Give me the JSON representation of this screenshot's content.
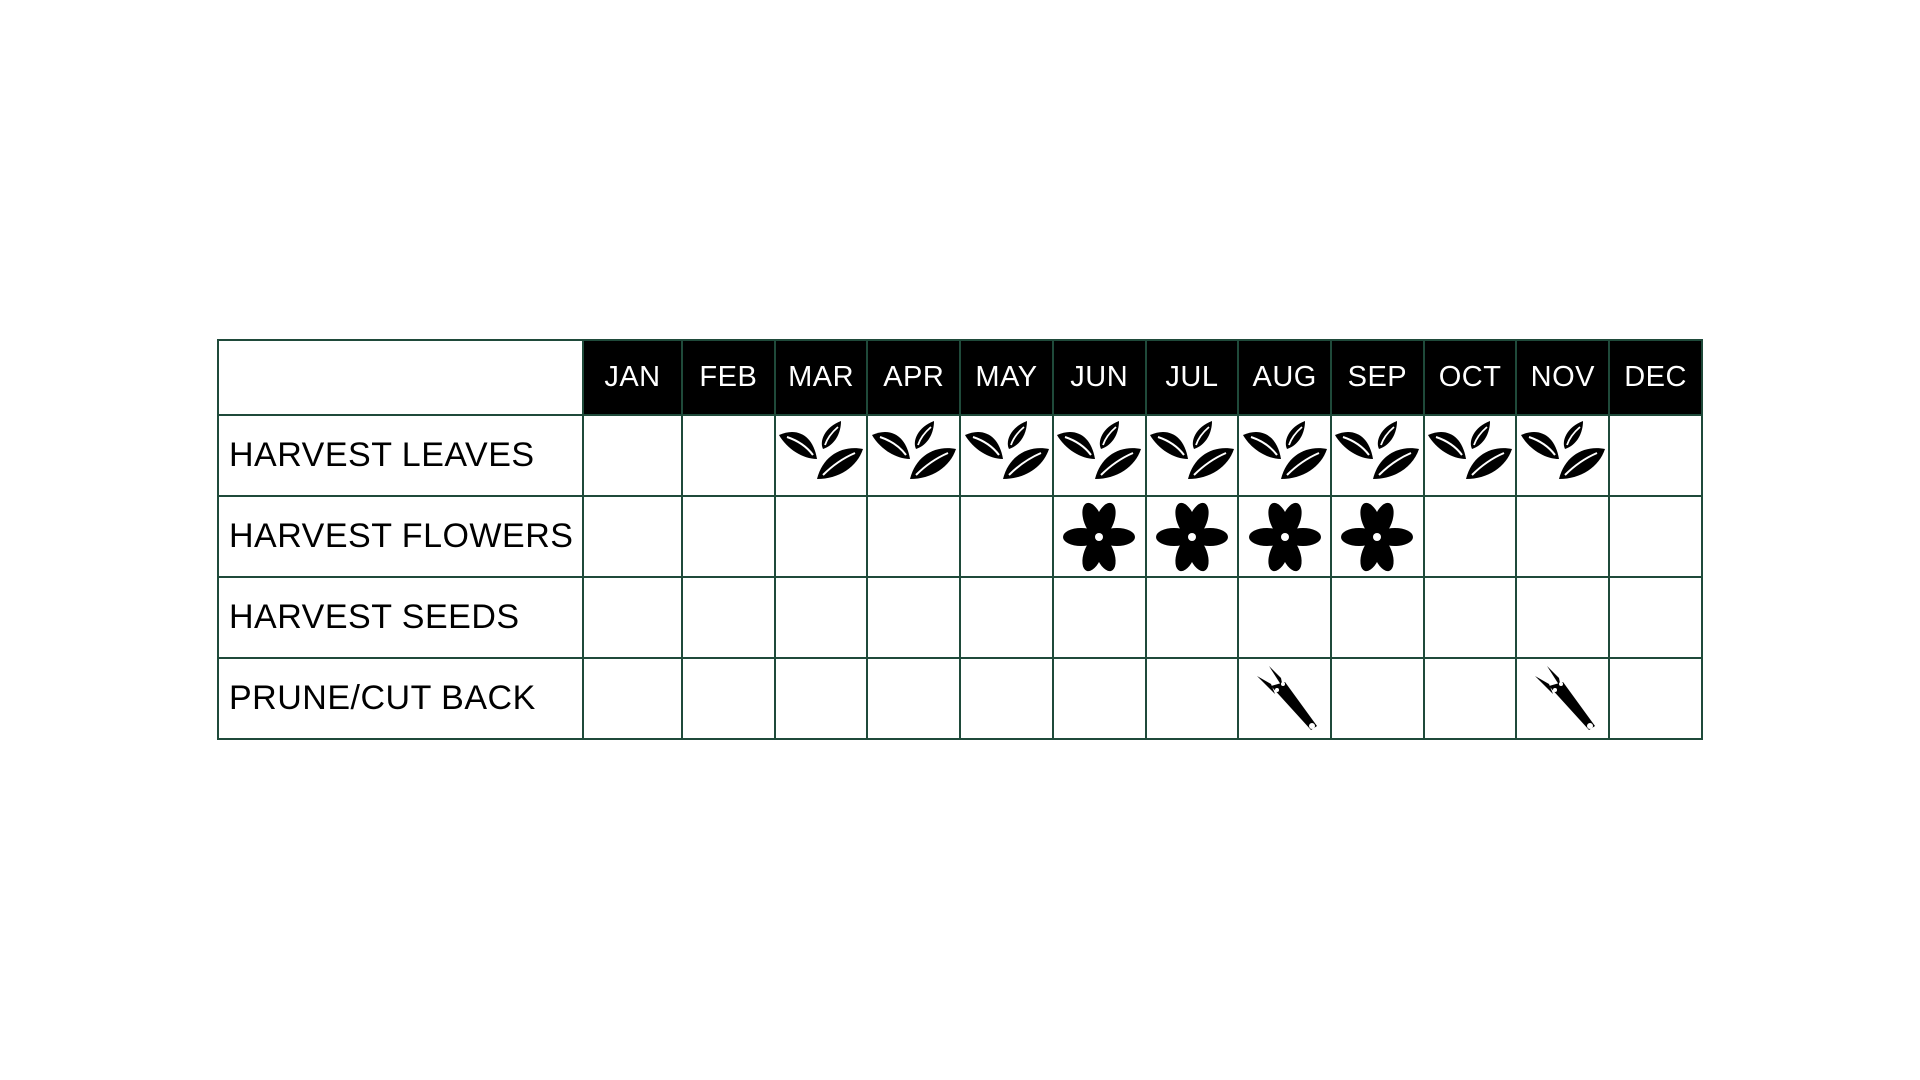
{
  "months": [
    "JAN",
    "FEB",
    "MAR",
    "APR",
    "MAY",
    "JUN",
    "JUL",
    "AUG",
    "SEP",
    "OCT",
    "NOV",
    "DEC"
  ],
  "rows": [
    {
      "label": "HARVEST LEAVES",
      "icon": "leaves-icon",
      "months": [
        "MAR",
        "APR",
        "MAY",
        "JUN",
        "JUL",
        "AUG",
        "SEP",
        "OCT",
        "NOV"
      ]
    },
    {
      "label": "HARVEST FLOWERS",
      "icon": "flower-icon",
      "months": [
        "JUN",
        "JUL",
        "AUG",
        "SEP"
      ]
    },
    {
      "label": "HARVEST SEEDS",
      "icon": "seeds-icon",
      "months": []
    },
    {
      "label": "PRUNE/CUT BACK",
      "icon": "shears-icon",
      "months": [
        "AUG",
        "NOV"
      ]
    }
  ],
  "colors": {
    "grid": "#1f4a3a",
    "header_bg": "#000000",
    "header_text": "#ffffff"
  }
}
